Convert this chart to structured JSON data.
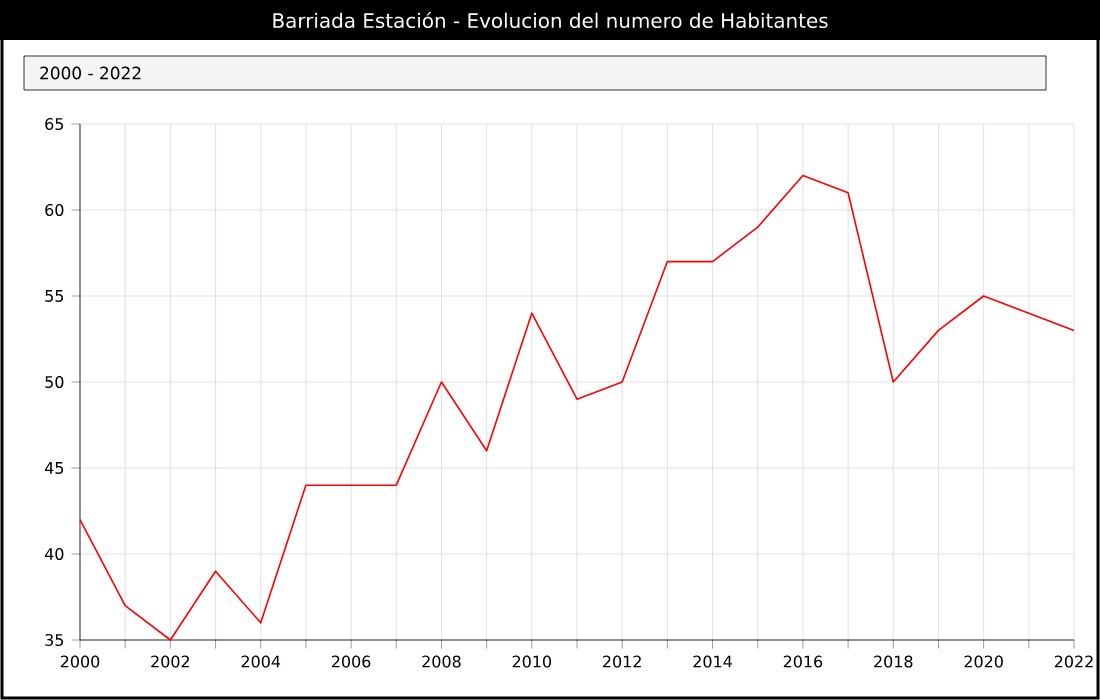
{
  "chart_data": {
    "type": "line",
    "title": "Barriada Estación - Evolucion del numero de Habitantes",
    "subtitle": "2000 - 2022",
    "x": [
      2000,
      2001,
      2002,
      2003,
      2004,
      2005,
      2006,
      2007,
      2008,
      2009,
      2010,
      2011,
      2012,
      2013,
      2014,
      2015,
      2016,
      2017,
      2018,
      2019,
      2020,
      2021,
      2022
    ],
    "series": [
      {
        "color": "#ff0000",
        "values": [
          42,
          37,
          35,
          39,
          36,
          44,
          44,
          44,
          50,
          46,
          54,
          49,
          50,
          57,
          57,
          59,
          62,
          61,
          50,
          53,
          55,
          54,
          53
        ]
      }
    ],
    "xlim": [
      2000,
      2022
    ],
    "xticks": [
      2000,
      {
        "value": 2001,
        "label": null
      },
      2002,
      {
        "value": 2003,
        "label": null
      },
      2004,
      {
        "value": 2005,
        "label": null
      },
      2006,
      {
        "value": 2007,
        "label": null
      },
      2008,
      {
        "value": 2009,
        "label": null
      },
      2010,
      {
        "value": 2011,
        "label": null
      },
      2012,
      {
        "value": 2013,
        "label": null
      },
      2014,
      {
        "value": 2015,
        "label": null
      },
      2016,
      {
        "value": 2017,
        "label": null
      },
      2018,
      {
        "value": 2019,
        "label": null
      },
      2020,
      {
        "value": 2021,
        "label": null
      },
      2022
    ],
    "ylim": [
      35,
      65
    ],
    "yticks": [
      35,
      40,
      45,
      50,
      55,
      60,
      65
    ],
    "grid": true,
    "legend": false,
    "marker": "none",
    "line_style": "solid"
  }
}
